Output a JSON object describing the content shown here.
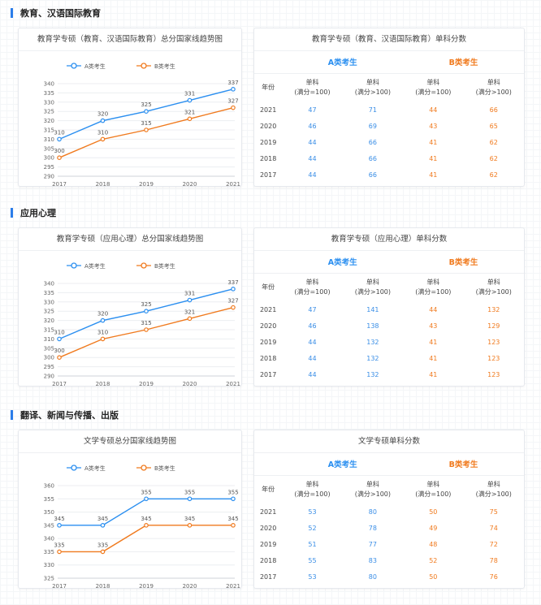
{
  "sections": [
    {
      "title": "教育、汉语国际教育",
      "chart_title": "教育学专硕（教育、汉语国际教育）总分国家线趋势图",
      "table_title": "教育学专硕（教育、汉语国际教育）单科分数",
      "group_a": "A类考生",
      "group_b": "B类考生",
      "headers": {
        "year": "年份",
        "a1": "单科\n(满分=100)",
        "a2": "单科\n(满分>100)",
        "b1": "单科\n(满分=100)",
        "b2": "单科\n(满分>100)"
      },
      "rows": [
        {
          "year": "2021",
          "a1": "47",
          "a2": "71",
          "b1": "44",
          "b2": "66"
        },
        {
          "year": "2020",
          "a1": "46",
          "a2": "69",
          "b1": "43",
          "b2": "65"
        },
        {
          "year": "2019",
          "a1": "44",
          "a2": "66",
          "b1": "41",
          "b2": "62"
        },
        {
          "year": "2018",
          "a1": "44",
          "a2": "66",
          "b1": "41",
          "b2": "62"
        },
        {
          "year": "2017",
          "a1": "44",
          "a2": "66",
          "b1": "41",
          "b2": "62"
        }
      ]
    },
    {
      "title": "应用心理",
      "chart_title": "教育学专硕（应用心理）总分国家线趋势图",
      "table_title": "教育学专硕（应用心理）单科分数",
      "group_a": "A类考生",
      "group_b": "B类考生",
      "headers": {
        "year": "年份",
        "a1": "单科\n(满分=100)",
        "a2": "单科\n(满分>100)",
        "b1": "单科\n(满分=100)",
        "b2": "单科\n(满分>100)"
      },
      "rows": [
        {
          "year": "2021",
          "a1": "47",
          "a2": "141",
          "b1": "44",
          "b2": "132"
        },
        {
          "year": "2020",
          "a1": "46",
          "a2": "138",
          "b1": "43",
          "b2": "129"
        },
        {
          "year": "2019",
          "a1": "44",
          "a2": "132",
          "b1": "41",
          "b2": "123"
        },
        {
          "year": "2018",
          "a1": "44",
          "a2": "132",
          "b1": "41",
          "b2": "123"
        },
        {
          "year": "2017",
          "a1": "44",
          "a2": "132",
          "b1": "41",
          "b2": "123"
        }
      ]
    },
    {
      "title": "翻译、新闻与传播、出版",
      "chart_title": "文学专硕总分国家线趋势图",
      "table_title": "文学专硕单科分数",
      "group_a": "A类考生",
      "group_b": "B类考生",
      "headers": {
        "year": "年份",
        "a1": "单科\n(满分=100)",
        "a2": "单科\n(满分>100)",
        "b1": "单科\n(满分=100)",
        "b2": "单科\n(满分>100)"
      },
      "rows": [
        {
          "year": "2021",
          "a1": "53",
          "a2": "80",
          "b1": "50",
          "b2": "75"
        },
        {
          "year": "2020",
          "a1": "52",
          "a2": "78",
          "b1": "49",
          "b2": "74"
        },
        {
          "year": "2019",
          "a1": "51",
          "a2": "77",
          "b1": "48",
          "b2": "72"
        },
        {
          "year": "2018",
          "a1": "55",
          "a2": "83",
          "b1": "52",
          "b2": "78"
        },
        {
          "year": "2017",
          "a1": "53",
          "a2": "80",
          "b1": "50",
          "b2": "76"
        }
      ]
    }
  ],
  "chart_data": [
    {
      "type": "line",
      "title": "教育学专硕（教育、汉语国际教育）总分国家线趋势图",
      "x": [
        "2017",
        "2018",
        "2019",
        "2020",
        "2021"
      ],
      "series": [
        {
          "name": "A类考生",
          "color": "#2b8ff0",
          "values": [
            310,
            320,
            325,
            331,
            337
          ]
        },
        {
          "name": "B类考生",
          "color": "#f07a1e",
          "values": [
            300,
            310,
            315,
            321,
            327
          ]
        }
      ],
      "ylim": [
        290,
        340
      ],
      "yticks": [
        290,
        295,
        300,
        305,
        310,
        315,
        320,
        325,
        330,
        335,
        340
      ],
      "grid": true,
      "legend": "top-center"
    },
    {
      "type": "line",
      "title": "教育学专硕（应用心理）总分国家线趋势图",
      "x": [
        "2017",
        "2018",
        "2019",
        "2020",
        "2021"
      ],
      "series": [
        {
          "name": "A类考生",
          "color": "#2b8ff0",
          "values": [
            310,
            320,
            325,
            331,
            337
          ]
        },
        {
          "name": "B类考生",
          "color": "#f07a1e",
          "values": [
            300,
            310,
            315,
            321,
            327
          ]
        }
      ],
      "ylim": [
        290,
        340
      ],
      "yticks": [
        290,
        295,
        300,
        305,
        310,
        315,
        320,
        325,
        330,
        335,
        340
      ],
      "grid": true,
      "legend": "top-center"
    },
    {
      "type": "line",
      "title": "文学专硕总分国家线趋势图",
      "x": [
        "2017",
        "2018",
        "2019",
        "2020",
        "2021"
      ],
      "series": [
        {
          "name": "A类考生",
          "color": "#2b8ff0",
          "values": [
            345,
            345,
            355,
            355,
            355
          ]
        },
        {
          "name": "B类考生",
          "color": "#f07a1e",
          "values": [
            335,
            335,
            345,
            345,
            345
          ]
        }
      ],
      "ylim": [
        325,
        360
      ],
      "yticks": [
        325,
        330,
        335,
        340,
        345,
        350,
        355,
        360
      ],
      "grid": true,
      "legend": "top-center"
    }
  ]
}
